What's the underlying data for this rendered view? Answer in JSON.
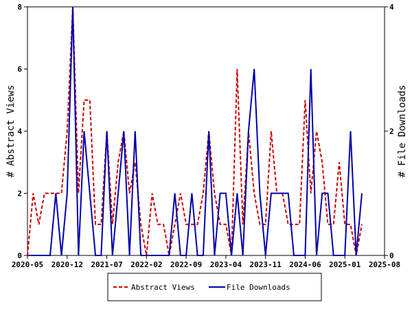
{
  "chart_data": {
    "type": "line",
    "ylabel_left": "# Abstract Views",
    "ylabel_right": "# File Downloads",
    "ylim_left": [
      0,
      8
    ],
    "ylim_right": [
      0,
      4
    ],
    "y_ticks_left": [
      0,
      2,
      4,
      6,
      8
    ],
    "y_ticks_right": [
      0,
      2,
      4
    ],
    "x_ticks": [
      "2020-05",
      "2020-12",
      "2021-07",
      "2022-02",
      "2022-09",
      "2023-04",
      "2023-11",
      "2024-06",
      "2025-01",
      "2025-08"
    ],
    "grid": false,
    "legend_placement": "bottom-center",
    "series": [
      {
        "name": "Abstract Views",
        "axis": "left",
        "color": "#cc0000",
        "style": "dashed",
        "values": [
          0,
          2,
          1,
          2,
          2,
          2,
          2,
          4,
          8,
          2,
          5,
          5,
          1,
          1,
          4,
          1,
          3,
          4,
          2,
          3,
          1,
          0,
          2,
          1,
          1,
          0,
          1,
          2,
          1,
          1,
          1,
          2,
          4,
          2,
          1,
          1,
          0,
          6,
          1,
          4,
          2,
          1,
          1,
          4,
          2,
          2,
          1,
          1,
          1,
          5,
          2,
          4,
          3,
          1,
          1,
          3,
          1,
          1,
          0,
          1
        ],
        "x_start": "2020-05"
      },
      {
        "name": "File Downloads",
        "axis": "right",
        "color": "#0000aa",
        "style": "solid",
        "values": [
          0,
          0,
          0,
          0,
          0,
          1,
          0,
          1,
          4,
          0,
          2,
          1,
          0,
          0,
          2,
          0,
          1,
          2,
          0,
          2,
          0,
          0,
          0,
          0,
          0,
          0,
          1,
          0,
          0,
          1,
          0,
          0,
          2,
          0,
          1,
          1,
          0,
          1,
          0,
          2,
          3,
          1,
          0,
          1,
          1,
          1,
          1,
          0,
          0,
          0,
          3,
          0,
          1,
          1,
          0,
          0,
          0,
          2,
          0,
          1
        ],
        "x_start": "2020-05"
      }
    ]
  },
  "legend": {
    "items": [
      {
        "label": "Abstract Views",
        "color": "#cc0000",
        "style": "dashed"
      },
      {
        "label": "File Downloads",
        "color": "#0000aa",
        "style": "solid"
      }
    ]
  }
}
